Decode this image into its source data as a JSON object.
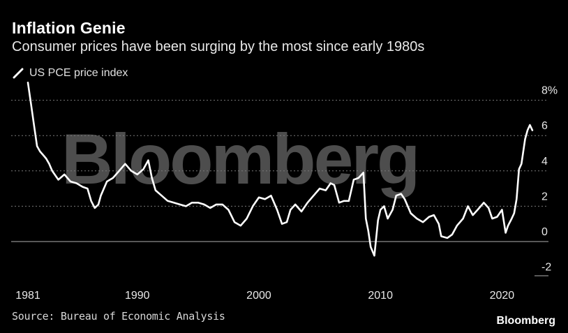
{
  "header": {
    "title": "Inflation Genie",
    "subtitle": "Consumer prices have been surging by the most since early 1980s"
  },
  "legend": {
    "label": "US PCE price index"
  },
  "footer": {
    "source": "Source: Bureau of Economic Analysis",
    "brand": "Bloomberg"
  },
  "watermark": "Bloomberg",
  "colors": {
    "background": "#000000",
    "line": "#ffffff",
    "grid": "#7a7a7a",
    "watermark": "#4d4d4d"
  },
  "chart_data": {
    "type": "line",
    "title": "Inflation Genie",
    "subtitle": "Consumer prices have been surging by the most since early 1980s",
    "xlabel": "",
    "ylabel": "",
    "ylim": [
      -2,
      8
    ],
    "xlim": [
      1981,
      2022.5
    ],
    "y_ticks": [
      8,
      6,
      4,
      2,
      0,
      -2
    ],
    "y_tick_labels": [
      "8%",
      "6",
      "4",
      "2",
      "0",
      "-2"
    ],
    "x_ticks": [
      1981,
      1990,
      2000,
      2010,
      2020
    ],
    "x_tick_labels": [
      "1981",
      "1990",
      "2000",
      "2010",
      "2020"
    ],
    "grid": true,
    "legend_position": "top-left",
    "series": [
      {
        "name": "US PCE price index",
        "x": [
          1981.0,
          1981.25,
          1981.5,
          1981.75,
          1982.0,
          1982.25,
          1982.5,
          1982.75,
          1983.0,
          1983.5,
          1984.0,
          1984.5,
          1985.0,
          1985.5,
          1985.9,
          1986.2,
          1986.5,
          1986.8,
          1987.0,
          1987.5,
          1988.0,
          1988.5,
          1989.0,
          1989.5,
          1990.0,
          1990.5,
          1990.9,
          1991.2,
          1991.5,
          1992.0,
          1992.5,
          1993.0,
          1993.5,
          1994.0,
          1994.5,
          1995.0,
          1995.5,
          1996.0,
          1996.5,
          1997.0,
          1997.5,
          1998.0,
          1998.5,
          1999.0,
          1999.5,
          2000.0,
          2000.5,
          2001.0,
          2001.5,
          2001.9,
          2002.3,
          2002.6,
          2003.0,
          2003.5,
          2004.0,
          2004.5,
          2005.0,
          2005.5,
          2005.9,
          2006.2,
          2006.6,
          2007.0,
          2007.4,
          2007.8,
          2008.2,
          2008.6,
          2008.8,
          2009.0,
          2009.2,
          2009.5,
          2009.8,
          2010.0,
          2010.3,
          2010.6,
          2011.0,
          2011.3,
          2011.7,
          2012.0,
          2012.5,
          2013.0,
          2013.5,
          2014.0,
          2014.4,
          2014.8,
          2015.0,
          2015.5,
          2015.9,
          2016.3,
          2016.8,
          2017.2,
          2017.6,
          2018.0,
          2018.5,
          2018.9,
          2019.2,
          2019.6,
          2020.0,
          2020.3,
          2020.5,
          2020.8,
          2021.0,
          2021.2,
          2021.4,
          2021.6,
          2021.9,
          2022.1,
          2022.3,
          2022.5
        ],
        "values": [
          9.0,
          7.8,
          6.6,
          5.4,
          5.1,
          4.9,
          4.7,
          4.4,
          4.0,
          3.5,
          3.8,
          3.4,
          3.3,
          3.1,
          3.0,
          2.3,
          1.9,
          2.1,
          2.6,
          3.4,
          3.6,
          4.0,
          4.4,
          4.0,
          3.8,
          4.1,
          4.6,
          3.6,
          2.9,
          2.6,
          2.3,
          2.2,
          2.1,
          2.0,
          2.2,
          2.2,
          2.1,
          1.9,
          2.1,
          2.1,
          1.8,
          1.1,
          0.9,
          1.3,
          2.0,
          2.5,
          2.4,
          2.6,
          1.8,
          1.0,
          1.1,
          1.8,
          2.1,
          1.7,
          2.2,
          2.6,
          3.0,
          2.9,
          3.3,
          3.2,
          2.2,
          2.3,
          2.3,
          3.5,
          3.6,
          3.9,
          1.3,
          0.6,
          -0.3,
          -0.8,
          1.2,
          1.8,
          2.0,
          1.3,
          1.8,
          2.6,
          2.7,
          2.4,
          1.6,
          1.3,
          1.1,
          1.4,
          1.5,
          1.0,
          0.3,
          0.2,
          0.4,
          0.9,
          1.3,
          2.0,
          1.5,
          1.8,
          2.2,
          1.9,
          1.3,
          1.4,
          1.8,
          0.5,
          0.9,
          1.3,
          1.6,
          2.4,
          4.1,
          4.4,
          5.8,
          6.3,
          6.6,
          6.3
        ]
      }
    ]
  }
}
